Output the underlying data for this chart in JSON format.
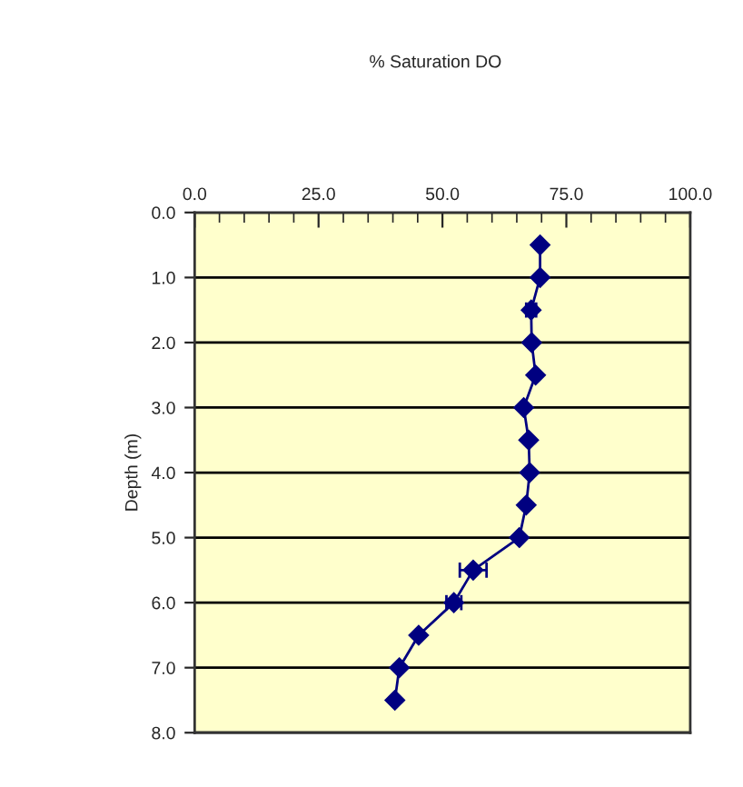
{
  "chart_data": {
    "type": "line",
    "title": "% Saturation DO",
    "ylabel": "Depth (m)",
    "series": [
      {
        "color": "#000080",
        "marker": "diamond",
        "line_style": "solid",
        "x": [
          69.7,
          69.7,
          67.9,
          68.0,
          68.8,
          66.4,
          67.4,
          67.6,
          66.9,
          65.5,
          56.2,
          52.3,
          45.2,
          41.3,
          40.4
        ],
        "values": [
          0.5,
          1.0,
          1.5,
          2.0,
          2.5,
          3.0,
          3.5,
          4.0,
          4.5,
          5.0,
          5.5,
          6.0,
          6.5,
          7.0,
          7.5
        ],
        "xerrors": [
          null,
          null,
          1.0,
          null,
          null,
          null,
          null,
          null,
          null,
          null,
          2.7,
          1.5,
          null,
          null,
          null
        ]
      }
    ],
    "xlim": [
      0,
      100
    ],
    "xticks": [
      {
        "value": 0,
        "label": "0.0"
      },
      {
        "value": 25,
        "label": "25.0"
      },
      {
        "value": 50,
        "label": "50.0"
      },
      {
        "value": 75,
        "label": "75.0"
      },
      {
        "value": 100,
        "label": "100.0"
      }
    ],
    "ylim": [
      8,
      0
    ],
    "yticks": [
      {
        "value": 0,
        "label": "0.0"
      },
      {
        "value": 1,
        "label": "1.0"
      },
      {
        "value": 2,
        "label": "2.0"
      },
      {
        "value": 3,
        "label": "3.0"
      },
      {
        "value": 4,
        "label": "4.0"
      },
      {
        "value": 5,
        "label": "5.0"
      },
      {
        "value": 6,
        "label": "6.0"
      },
      {
        "value": 7,
        "label": "7.0"
      },
      {
        "value": 8,
        "label": "8.0"
      }
    ],
    "grid": "y",
    "legend": false
  }
}
